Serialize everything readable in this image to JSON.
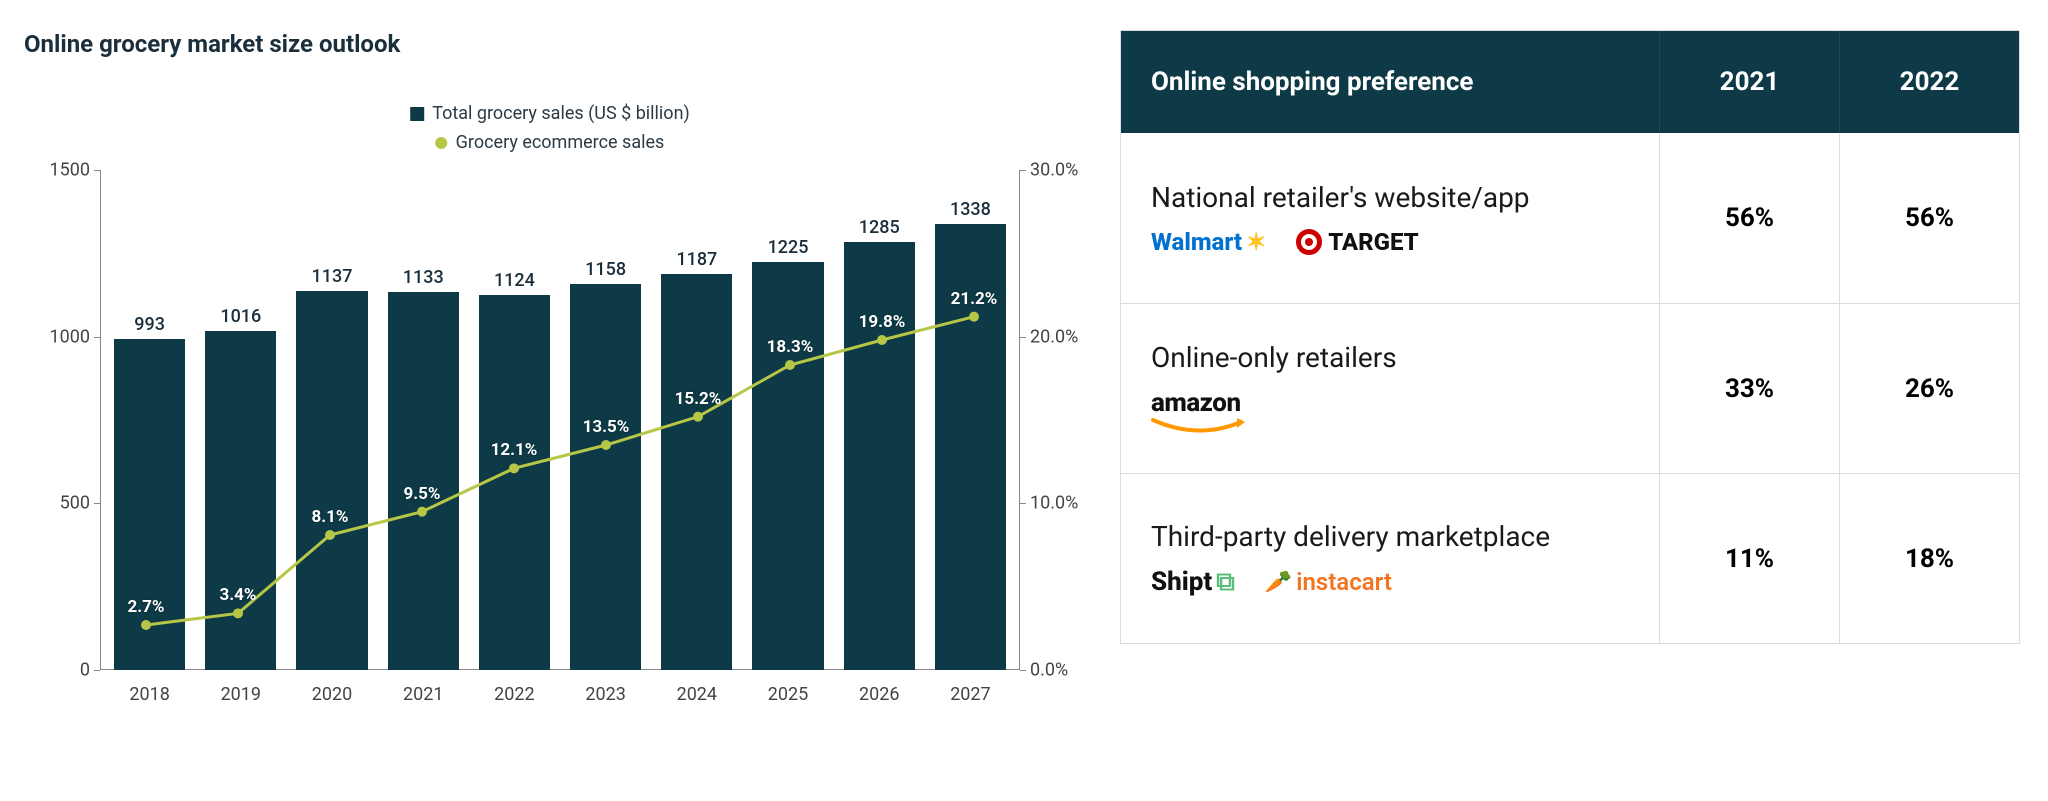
{
  "chart": {
    "title": "Online grocery market size outlook",
    "legend_bars": "Total grocery sales (US $ billion)",
    "legend_line": "Grocery ecommerce sales",
    "bar_color": "#0d3a46",
    "line_color": "#b7c646",
    "y_left": {
      "min": 0,
      "max": 1500,
      "ticks": [
        0,
        500,
        1000,
        1500
      ]
    },
    "y_right": {
      "min": 0.0,
      "max": 30.0,
      "ticks": [
        "0.0%",
        "10.0%",
        "20.0%",
        "30.0%"
      ]
    },
    "categories": [
      "2018",
      "2019",
      "2020",
      "2021",
      "2022",
      "2023",
      "2024",
      "2025",
      "2026",
      "2027"
    ],
    "bar_values": [
      993,
      1016,
      1137,
      1133,
      1124,
      1158,
      1187,
      1225,
      1285,
      1338
    ],
    "line_values_pct": [
      2.7,
      3.4,
      8.1,
      9.5,
      12.1,
      13.5,
      15.2,
      18.3,
      19.8,
      21.2
    ],
    "line_labels": [
      "2.7%",
      "3.4%",
      "8.1%",
      "9.5%",
      "12.1%",
      "13.5%",
      "15.2%",
      "18.3%",
      "19.8%",
      "21.2%"
    ]
  },
  "table": {
    "header": {
      "title": "Online shopping preference",
      "col1": "2021",
      "col2": "2022"
    },
    "rows": [
      {
        "label": "National retailer's website/app",
        "brands": [
          {
            "name": "Walmart",
            "type": "walmart"
          },
          {
            "name": "TARGET",
            "type": "target"
          }
        ],
        "y2021": "56%",
        "y2022": "56%"
      },
      {
        "label": "Online-only retailers",
        "brands": [
          {
            "name": "amazon",
            "type": "amazon"
          }
        ],
        "y2021": "33%",
        "y2022": "26%"
      },
      {
        "label": "Third-party delivery marketplace",
        "brands": [
          {
            "name": "Shipt",
            "type": "shipt"
          },
          {
            "name": "instacart",
            "type": "instacart"
          }
        ],
        "y2021": "11%",
        "y2022": "18%"
      }
    ]
  }
}
